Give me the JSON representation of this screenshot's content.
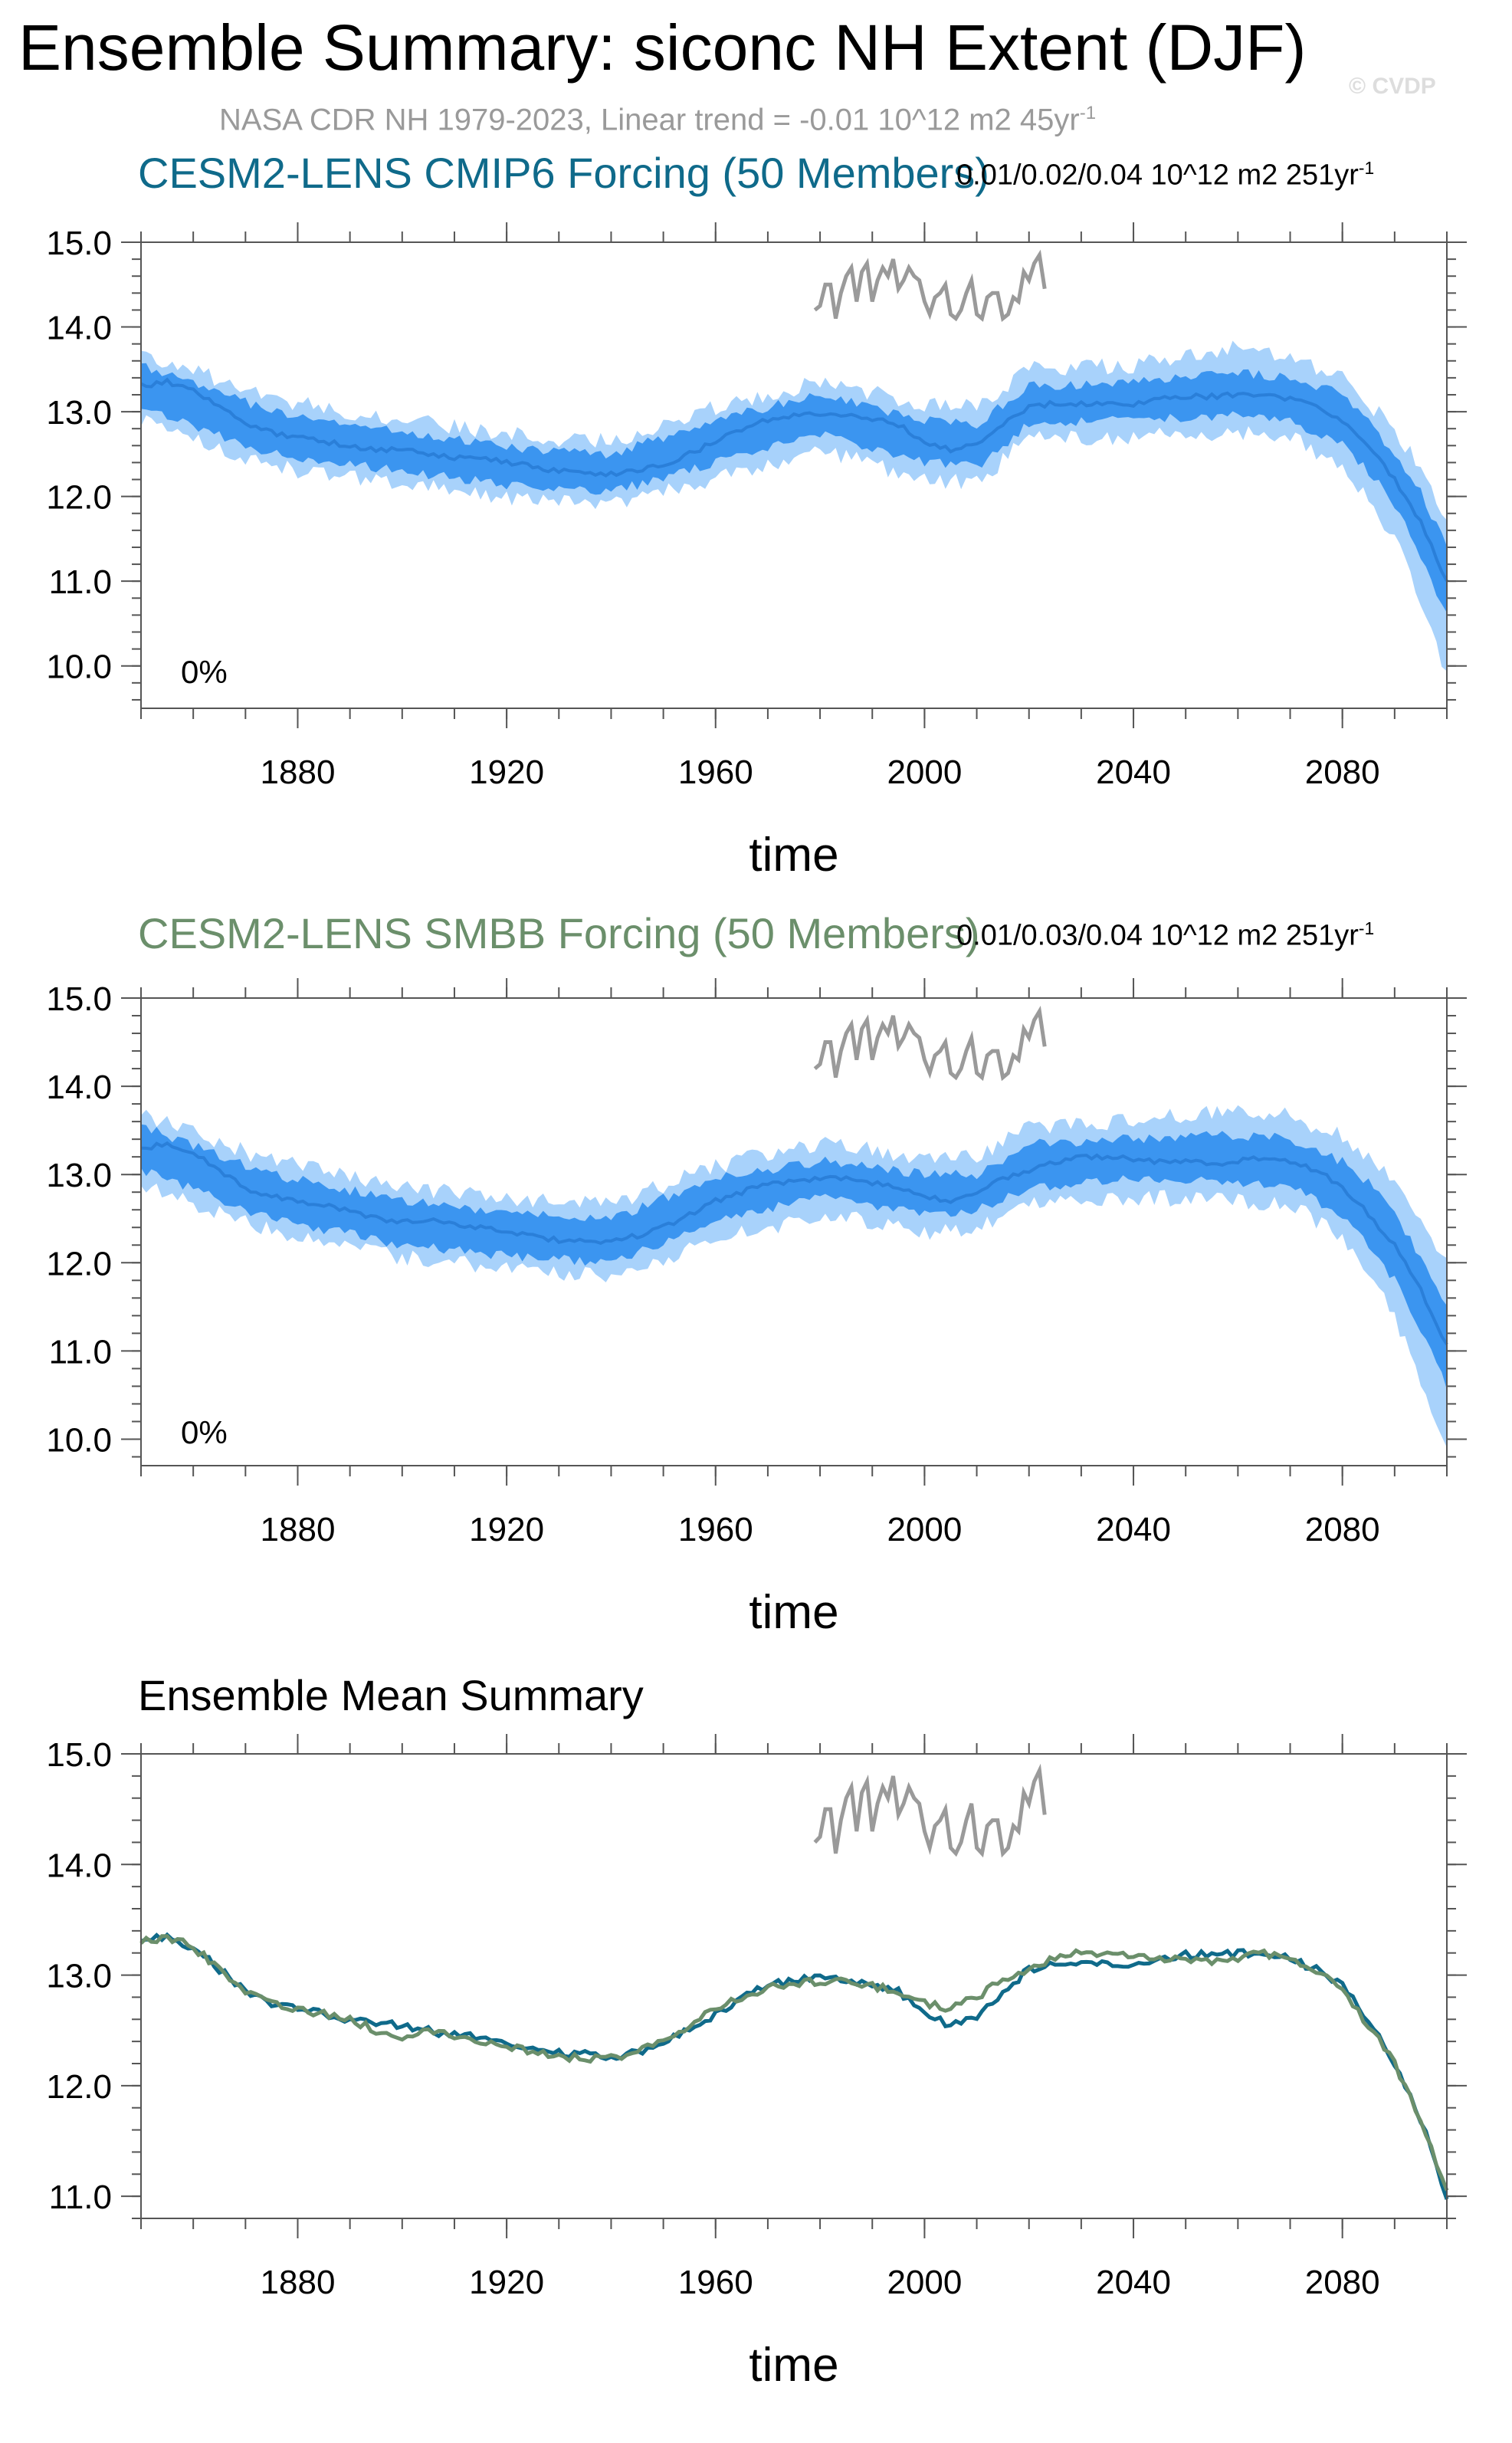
{
  "figure": {
    "title": "Ensemble Summary: siconc NH Extent (DJF)",
    "copyright": "© CVDP",
    "obs_subtitle_main": "NASA CDR NH 1979-2023, Linear trend = -0.01 10^12 m2 45yr",
    "obs_subtitle_sup": "-1",
    "colors": {
      "band_outer": "#a8d2fb",
      "band_inner": "#3b95f0",
      "mean_line": "#2a7fd9",
      "obs_line": "#9a9a9a",
      "cmip6_title": "#0f6a8a",
      "smbb_title": "#6b8f6b"
    }
  },
  "chart_data": [
    {
      "type": "area",
      "title": "CESM2-LENS CMIP6 Forcing (50 Members)",
      "trend_label_main": "0.01/0.02/0.04 10^12 m2 251yr",
      "trend_label_sup": "-1",
      "percent_label": "0%",
      "xlabel": "time",
      "ylabel": "",
      "xlim": [
        1850,
        2100
      ],
      "ylim": [
        9.5,
        15.0
      ],
      "yticks": [
        10.0,
        11.0,
        12.0,
        13.0,
        14.0,
        15.0
      ],
      "ytick_labels": [
        "10.0",
        "11.0",
        "12.0",
        "13.0",
        "14.0",
        "15.0"
      ],
      "xticks": [
        1880,
        1920,
        1960,
        2000,
        2040,
        2080
      ],
      "xtick_labels": [
        "1880",
        "1920",
        "1960",
        "2000",
        "2040",
        "2080"
      ],
      "series": [
        {
          "name": "ensemble mean",
          "x": [
            1850,
            1855,
            1860,
            1865,
            1870,
            1875,
            1880,
            1885,
            1890,
            1895,
            1900,
            1905,
            1910,
            1915,
            1920,
            1925,
            1930,
            1935,
            1940,
            1945,
            1950,
            1955,
            1960,
            1965,
            1970,
            1975,
            1980,
            1985,
            1990,
            1995,
            2000,
            2005,
            2010,
            2015,
            2020,
            2025,
            2030,
            2035,
            2040,
            2045,
            2050,
            2055,
            2060,
            2065,
            2070,
            2075,
            2080,
            2085,
            2090,
            2095,
            2100
          ],
          "values": [
            13.3,
            13.35,
            13.25,
            13.05,
            12.85,
            12.75,
            12.7,
            12.65,
            12.6,
            12.55,
            12.55,
            12.5,
            12.45,
            12.45,
            12.4,
            12.35,
            12.3,
            12.28,
            12.27,
            12.3,
            12.38,
            12.5,
            12.65,
            12.8,
            12.9,
            12.95,
            12.98,
            12.95,
            12.92,
            12.85,
            12.65,
            12.55,
            12.6,
            12.85,
            13.05,
            13.1,
            13.1,
            13.1,
            13.08,
            13.15,
            13.18,
            13.18,
            13.2,
            13.2,
            13.15,
            13.05,
            12.9,
            12.6,
            12.2,
            11.7,
            11.0
          ]
        },
        {
          "name": "inner spread",
          "x": [
            1850,
            1875,
            1900,
            1925,
            1940,
            1960,
            1980,
            2000,
            2010,
            2020,
            2040,
            2060,
            2070,
            2080,
            2085,
            2090,
            2095,
            2100
          ],
          "lower": [
            13.05,
            12.5,
            12.3,
            12.1,
            12.05,
            12.4,
            12.75,
            12.4,
            12.35,
            12.85,
            12.9,
            12.95,
            12.9,
            12.6,
            12.3,
            11.9,
            11.3,
            10.6
          ],
          "upper": [
            13.55,
            13.0,
            12.75,
            12.55,
            12.5,
            12.9,
            13.2,
            12.9,
            12.85,
            13.3,
            13.35,
            13.45,
            13.4,
            13.2,
            12.9,
            12.5,
            12.05,
            11.4
          ]
        },
        {
          "name": "outer spread",
          "x": [
            1850,
            1875,
            1900,
            1925,
            1940,
            1960,
            1980,
            2000,
            2010,
            2020,
            2040,
            2060,
            2070,
            2080,
            2085,
            2090,
            2095,
            2100
          ],
          "lower": [
            12.9,
            12.35,
            12.15,
            11.95,
            11.9,
            12.2,
            12.55,
            12.2,
            12.15,
            12.7,
            12.7,
            12.75,
            12.7,
            12.35,
            12.0,
            11.5,
            10.8,
            9.85
          ],
          "upper": [
            13.7,
            13.15,
            12.9,
            12.7,
            12.65,
            13.05,
            13.35,
            13.1,
            13.05,
            13.5,
            13.55,
            13.75,
            13.6,
            13.4,
            13.1,
            12.8,
            12.3,
            11.7
          ]
        }
      ]
    },
    {
      "type": "area",
      "title": "CESM2-LENS SMBB Forcing (50 Members)",
      "trend_label_main": "0.01/0.03/0.04 10^12 m2 251yr",
      "trend_label_sup": "-1",
      "percent_label": "0%",
      "xlabel": "time",
      "ylabel": "",
      "xlim": [
        1850,
        2100
      ],
      "ylim": [
        9.7,
        15.0
      ],
      "yticks": [
        10.0,
        11.0,
        12.0,
        13.0,
        14.0,
        15.0
      ],
      "ytick_labels": [
        "10.0",
        "11.0",
        "12.0",
        "13.0",
        "14.0",
        "15.0"
      ],
      "xticks": [
        1880,
        1920,
        1960,
        2000,
        2040,
        2080
      ],
      "xtick_labels": [
        "1880",
        "1920",
        "1960",
        "2000",
        "2040",
        "2080"
      ],
      "series": [
        {
          "name": "ensemble mean",
          "x": [
            1850,
            1855,
            1860,
            1865,
            1870,
            1875,
            1880,
            1885,
            1890,
            1895,
            1900,
            1905,
            1910,
            1915,
            1920,
            1925,
            1930,
            1935,
            1940,
            1945,
            1950,
            1955,
            1960,
            1965,
            1970,
            1975,
            1980,
            1985,
            1990,
            1995,
            2000,
            2005,
            2010,
            2015,
            2020,
            2025,
            2030,
            2035,
            2040,
            2045,
            2050,
            2055,
            2060,
            2065,
            2070,
            2075,
            2080,
            2085,
            2090,
            2095,
            2100
          ],
          "values": [
            13.3,
            13.35,
            13.25,
            13.05,
            12.85,
            12.75,
            12.7,
            12.65,
            12.6,
            12.5,
            12.45,
            12.5,
            12.45,
            12.4,
            12.35,
            12.3,
            12.25,
            12.25,
            12.25,
            12.3,
            12.4,
            12.55,
            12.7,
            12.8,
            12.88,
            12.92,
            12.95,
            12.95,
            12.9,
            12.85,
            12.75,
            12.7,
            12.8,
            12.95,
            13.05,
            13.15,
            13.2,
            13.2,
            13.18,
            13.15,
            13.15,
            13.12,
            13.15,
            13.2,
            13.15,
            13.05,
            12.85,
            12.55,
            12.2,
            11.7,
            11.05
          ]
        },
        {
          "name": "inner spread",
          "x": [
            1850,
            1875,
            1900,
            1925,
            1940,
            1960,
            1980,
            2000,
            2010,
            2020,
            2040,
            2060,
            2070,
            2080,
            2085,
            2090,
            2095,
            2100
          ],
          "lower": [
            13.05,
            12.5,
            12.2,
            12.05,
            12.0,
            12.45,
            12.75,
            12.55,
            12.6,
            12.85,
            12.95,
            12.9,
            12.85,
            12.55,
            12.2,
            11.8,
            11.2,
            10.6
          ],
          "upper": [
            13.55,
            13.0,
            12.7,
            12.55,
            12.5,
            12.95,
            13.15,
            13.0,
            13.0,
            13.35,
            13.4,
            13.45,
            13.4,
            13.15,
            12.9,
            12.55,
            12.05,
            11.5
          ]
        },
        {
          "name": "outer spread",
          "x": [
            1850,
            1875,
            1900,
            1925,
            1940,
            1960,
            1980,
            2000,
            2010,
            2020,
            2040,
            2060,
            2070,
            2080,
            2085,
            2090,
            2095,
            2100
          ],
          "lower": [
            12.9,
            12.35,
            12.05,
            11.9,
            11.85,
            12.25,
            12.55,
            12.35,
            12.4,
            12.7,
            12.75,
            12.7,
            12.65,
            12.3,
            11.9,
            11.4,
            10.6,
            9.9
          ],
          "upper": [
            13.7,
            13.15,
            12.85,
            12.7,
            12.65,
            13.1,
            13.35,
            13.2,
            13.2,
            13.55,
            13.6,
            13.75,
            13.65,
            13.45,
            13.2,
            12.9,
            12.5,
            12.0
          ]
        }
      ]
    },
    {
      "type": "line",
      "title": "Ensemble Mean Summary",
      "xlabel": "time",
      "ylabel": "",
      "xlim": [
        1850,
        2100
      ],
      "ylim": [
        10.8,
        15.0
      ],
      "yticks": [
        11.0,
        12.0,
        13.0,
        14.0,
        15.0
      ],
      "ytick_labels": [
        "11.0",
        "12.0",
        "13.0",
        "14.0",
        "15.0"
      ],
      "xticks": [
        1880,
        1920,
        1960,
        2000,
        2040,
        2080
      ],
      "xtick_labels": [
        "1880",
        "1920",
        "1960",
        "2000",
        "2040",
        "2080"
      ],
      "series": [
        {
          "name": "CESM2-LENS CMIP6 Forcing",
          "color": "#0f6a8a",
          "x": [
            1850,
            1855,
            1860,
            1865,
            1870,
            1875,
            1880,
            1885,
            1890,
            1895,
            1900,
            1905,
            1910,
            1915,
            1920,
            1925,
            1930,
            1935,
            1940,
            1945,
            1950,
            1955,
            1960,
            1965,
            1970,
            1975,
            1980,
            1985,
            1990,
            1995,
            2000,
            2005,
            2010,
            2015,
            2020,
            2025,
            2030,
            2035,
            2040,
            2045,
            2050,
            2055,
            2060,
            2065,
            2070,
            2075,
            2080,
            2085,
            2090,
            2095,
            2100
          ],
          "values": [
            13.3,
            13.35,
            13.25,
            13.05,
            12.85,
            12.75,
            12.7,
            12.65,
            12.6,
            12.55,
            12.55,
            12.5,
            12.45,
            12.45,
            12.4,
            12.35,
            12.3,
            12.28,
            12.27,
            12.3,
            12.38,
            12.5,
            12.65,
            12.8,
            12.9,
            12.95,
            12.98,
            12.95,
            12.92,
            12.85,
            12.65,
            12.55,
            12.6,
            12.85,
            13.05,
            13.1,
            13.1,
            13.1,
            13.08,
            13.15,
            13.18,
            13.18,
            13.2,
            13.2,
            13.15,
            13.05,
            12.9,
            12.6,
            12.2,
            11.7,
            11.0
          ]
        },
        {
          "name": "CESM2-LENS SMBB Forcing",
          "color": "#6b8f6b",
          "x": [
            1850,
            1855,
            1860,
            1865,
            1870,
            1875,
            1880,
            1885,
            1890,
            1895,
            1900,
            1905,
            1910,
            1915,
            1920,
            1925,
            1930,
            1935,
            1940,
            1945,
            1950,
            1955,
            1960,
            1965,
            1970,
            1975,
            1980,
            1985,
            1990,
            1995,
            2000,
            2005,
            2010,
            2015,
            2020,
            2025,
            2030,
            2035,
            2040,
            2045,
            2050,
            2055,
            2060,
            2065,
            2070,
            2075,
            2080,
            2085,
            2090,
            2095,
            2100
          ],
          "values": [
            13.3,
            13.35,
            13.25,
            13.05,
            12.85,
            12.75,
            12.7,
            12.65,
            12.6,
            12.5,
            12.45,
            12.5,
            12.45,
            12.4,
            12.35,
            12.3,
            12.25,
            12.25,
            12.25,
            12.3,
            12.4,
            12.55,
            12.7,
            12.8,
            12.88,
            12.92,
            12.95,
            12.95,
            12.9,
            12.85,
            12.75,
            12.7,
            12.8,
            12.95,
            13.05,
            13.15,
            13.2,
            13.2,
            13.18,
            13.15,
            13.15,
            13.12,
            13.15,
            13.2,
            13.15,
            13.05,
            12.85,
            12.55,
            12.2,
            11.7,
            11.05
          ]
        }
      ]
    }
  ],
  "observations": {
    "name": "NASA CDR NH 1979-2023",
    "x": [
      1979,
      1980,
      1981,
      1982,
      1983,
      1984,
      1985,
      1986,
      1987,
      1988,
      1989,
      1990,
      1991,
      1992,
      1993,
      1994,
      1995,
      1996,
      1997,
      1998,
      1999,
      2000,
      2001,
      2002,
      2003,
      2004,
      2005,
      2006,
      2007,
      2008,
      2009,
      2010,
      2011,
      2012,
      2013,
      2014,
      2015,
      2016,
      2017,
      2018,
      2019,
      2020,
      2021,
      2022,
      2023
    ],
    "values": [
      14.2,
      14.25,
      14.5,
      14.5,
      14.1,
      14.4,
      14.6,
      14.7,
      14.3,
      14.65,
      14.75,
      14.3,
      14.55,
      14.7,
      14.6,
      14.8,
      14.45,
      14.55,
      14.7,
      14.6,
      14.55,
      14.3,
      14.15,
      14.35,
      14.4,
      14.5,
      14.15,
      14.1,
      14.2,
      14.4,
      14.55,
      14.15,
      14.1,
      14.35,
      14.4,
      14.4,
      14.1,
      14.15,
      14.35,
      14.3,
      14.65,
      14.55,
      14.75,
      14.85,
      14.45
    ]
  }
}
